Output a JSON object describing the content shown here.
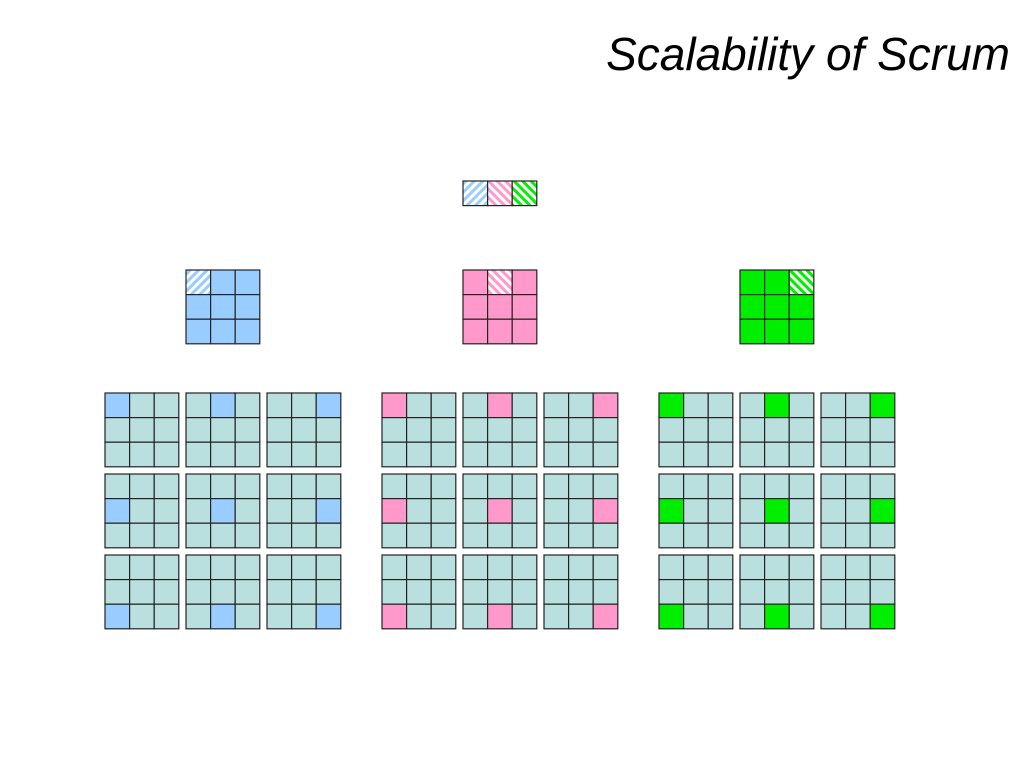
{
  "header": {
    "title": "Scalability of Scrum"
  }
}
